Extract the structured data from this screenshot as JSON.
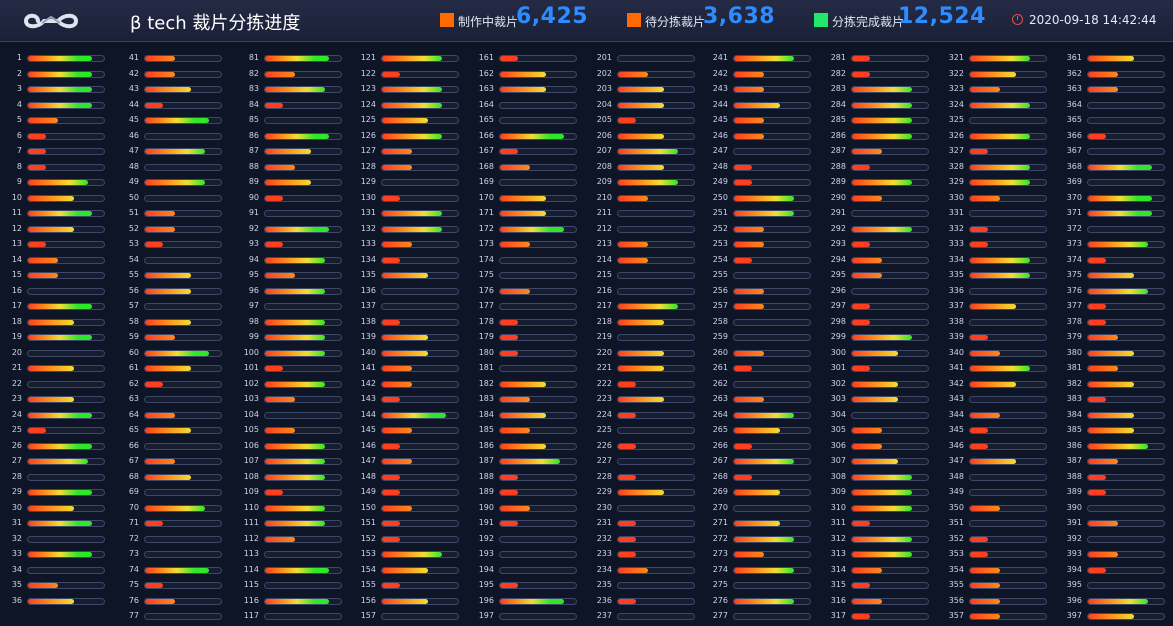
{
  "header": {
    "title": "β tech 裁片分拣进度",
    "logo": "infinity-logo-icon",
    "stats": [
      {
        "label": "制作中裁片",
        "value": "6,425",
        "color": "#ff6a00"
      },
      {
        "label": "待分拣裁片",
        "value": "3,638",
        "color": "#ff6a00"
      },
      {
        "label": "分拣完成裁片",
        "value": "12,524",
        "color": "#22e86a"
      }
    ],
    "datetime": "2020-09-18 14:42:44"
  },
  "grid": {
    "colors": {
      "red": "#ff3d1f",
      "orange": "#ff8a1c",
      "yellow": "#f2de32",
      "green": "#2ee62a",
      "empty": "#161d30"
    },
    "columns": [
      {
        "start": 1,
        "levels": [
          5,
          5,
          5,
          5,
          2,
          1,
          1,
          1,
          4,
          3,
          5,
          3,
          1,
          2,
          2,
          0,
          5,
          3,
          5,
          0,
          3,
          0,
          3,
          5,
          1,
          5,
          4,
          0,
          5,
          3,
          5,
          0,
          5,
          0,
          2,
          3
        ]
      },
      {
        "start": 41,
        "levels": [
          2,
          2,
          3,
          1,
          5,
          0,
          4,
          0,
          4,
          0,
          2,
          2,
          1,
          0,
          3,
          3,
          0,
          3,
          2,
          5,
          3,
          1,
          0,
          2,
          3,
          0,
          2,
          3,
          0,
          4,
          1,
          0,
          0,
          5,
          1,
          2,
          0
        ]
      },
      {
        "start": 81,
        "levels": [
          5,
          2,
          4,
          1,
          0,
          5,
          3,
          2,
          3,
          1,
          0,
          5,
          1,
          4,
          2,
          4,
          0,
          4,
          4,
          4,
          1,
          4,
          2,
          0,
          2,
          4,
          4,
          4,
          1,
          4,
          4,
          2,
          0,
          5,
          0,
          5,
          0
        ]
      },
      {
        "start": 121,
        "levels": [
          4,
          1,
          4,
          4,
          3,
          4,
          2,
          2,
          0,
          1,
          4,
          4,
          2,
          1,
          3,
          0,
          0,
          1,
          3,
          3,
          2,
          2,
          1,
          5,
          2,
          1,
          2,
          1,
          1,
          2,
          1,
          1,
          4,
          3,
          1,
          3,
          0
        ]
      },
      {
        "start": 161,
        "levels": [
          1,
          3,
          3,
          0,
          0,
          5,
          1,
          2,
          0,
          3,
          3,
          5,
          2,
          0,
          0,
          2,
          0,
          1,
          1,
          1,
          0,
          3,
          2,
          3,
          2,
          3,
          4,
          1,
          1,
          2,
          1,
          0,
          0,
          0,
          1,
          5,
          0
        ]
      },
      {
        "start": 201,
        "levels": [
          0,
          2,
          3,
          3,
          1,
          3,
          4,
          3,
          4,
          2,
          0,
          0,
          2,
          2,
          0,
          0,
          4,
          3,
          0,
          3,
          3,
          1,
          3,
          1,
          0,
          1,
          0,
          1,
          3,
          0,
          1,
          1,
          1,
          2,
          0,
          1,
          0
        ]
      },
      {
        "start": 241,
        "levels": [
          4,
          2,
          2,
          3,
          2,
          2,
          0,
          1,
          1,
          4,
          4,
          2,
          2,
          1,
          0,
          2,
          2,
          0,
          0,
          2,
          1,
          0,
          2,
          4,
          3,
          1,
          4,
          1,
          3,
          0,
          3,
          4,
          2,
          4,
          0,
          4,
          0
        ]
      },
      {
        "start": 281,
        "levels": [
          1,
          1,
          4,
          4,
          4,
          4,
          2,
          1,
          4,
          2,
          0,
          4,
          1,
          2,
          2,
          0,
          1,
          1,
          4,
          3,
          1,
          3,
          3,
          0,
          2,
          2,
          3,
          4,
          4,
          4,
          1,
          4,
          4,
          2,
          1,
          2,
          1
        ]
      },
      {
        "start": 321,
        "levels": [
          4,
          3,
          2,
          4,
          0,
          4,
          1,
          4,
          4,
          2,
          0,
          1,
          1,
          4,
          4,
          0,
          3,
          0,
          1,
          2,
          4,
          3,
          0,
          2,
          1,
          1,
          3,
          0,
          0,
          2,
          0,
          1,
          1,
          2,
          2,
          2,
          2
        ]
      },
      {
        "start": 361,
        "levels": [
          3,
          2,
          2,
          0,
          0,
          1,
          0,
          5,
          0,
          5,
          5,
          0,
          4,
          1,
          3,
          4,
          1,
          1,
          2,
          3,
          2,
          3,
          1,
          3,
          3,
          4,
          2,
          1,
          1,
          0,
          2,
          0,
          2,
          1,
          0,
          4,
          3
        ]
      }
    ]
  }
}
